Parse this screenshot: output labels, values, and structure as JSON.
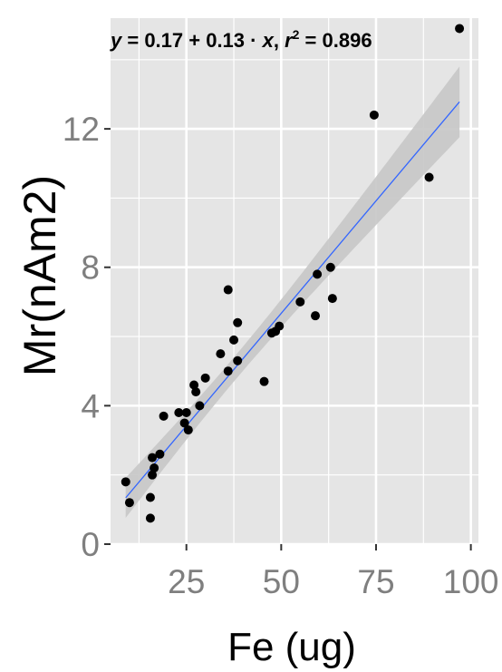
{
  "colors": {
    "panel_bg": "#e5e5e5",
    "grid": "#ffffff",
    "point": "#000000",
    "line": "#3366ff",
    "band": "#c6c6c6",
    "tick_text": "#7f7f7f"
  },
  "chart_data": {
    "type": "scatter",
    "title": "",
    "xlabel": "Fe (ug)",
    "ylabel": "Mr(nAm2)",
    "xlim": [
      5,
      102
    ],
    "ylim": [
      0,
      15.2
    ],
    "xticks": [
      25,
      50,
      75,
      100
    ],
    "yticks": [
      0,
      4,
      8,
      12
    ],
    "xtick_labels": [
      "25",
      "50",
      "75",
      "100"
    ],
    "ytick_labels": [
      "0",
      "4",
      "8",
      "12"
    ],
    "grid": true,
    "equation": "y = 0.17 + 0.13 · x, r² = 0.896",
    "regression": {
      "intercept": 0.17,
      "slope": 0.13,
      "r2": 0.896,
      "x_range": [
        9,
        97
      ]
    },
    "points": [
      {
        "x": 9,
        "y": 1.8
      },
      {
        "x": 10,
        "y": 1.2
      },
      {
        "x": 15.5,
        "y": 0.75
      },
      {
        "x": 15.5,
        "y": 1.35
      },
      {
        "x": 16,
        "y": 2.0
      },
      {
        "x": 16.5,
        "y": 2.2
      },
      {
        "x": 16,
        "y": 2.5
      },
      {
        "x": 18,
        "y": 2.6
      },
      {
        "x": 19,
        "y": 3.7
      },
      {
        "x": 23,
        "y": 3.8
      },
      {
        "x": 24.5,
        "y": 3.5
      },
      {
        "x": 25.5,
        "y": 3.3
      },
      {
        "x": 25,
        "y": 3.8
      },
      {
        "x": 27,
        "y": 4.6
      },
      {
        "x": 27.5,
        "y": 4.4
      },
      {
        "x": 28.5,
        "y": 4.0
      },
      {
        "x": 30,
        "y": 4.8
      },
      {
        "x": 34,
        "y": 5.5
      },
      {
        "x": 36,
        "y": 5.0
      },
      {
        "x": 36,
        "y": 7.35
      },
      {
        "x": 37.5,
        "y": 5.9
      },
      {
        "x": 38.5,
        "y": 6.4
      },
      {
        "x": 38.5,
        "y": 5.3
      },
      {
        "x": 45.5,
        "y": 4.7
      },
      {
        "x": 47.5,
        "y": 6.1
      },
      {
        "x": 48.5,
        "y": 6.15
      },
      {
        "x": 49.5,
        "y": 6.3
      },
      {
        "x": 55,
        "y": 7.0
      },
      {
        "x": 59,
        "y": 6.6
      },
      {
        "x": 59.5,
        "y": 7.8
      },
      {
        "x": 63,
        "y": 8.0
      },
      {
        "x": 63.5,
        "y": 7.1
      },
      {
        "x": 74.5,
        "y": 12.4
      },
      {
        "x": 89,
        "y": 10.6
      },
      {
        "x": 97,
        "y": 14.9
      }
    ]
  }
}
